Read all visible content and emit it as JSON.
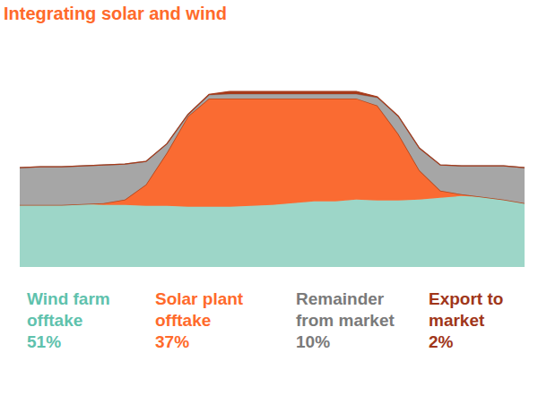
{
  "chart_data": {
    "type": "area",
    "title": "Integrating solar and wind",
    "stacked": true,
    "tick_labels": false,
    "x": [
      0,
      1,
      2,
      3,
      4,
      5,
      6,
      7,
      8,
      9,
      10,
      11,
      12,
      13,
      14,
      15,
      16,
      17,
      18,
      19,
      20,
      21,
      22,
      23,
      24
    ],
    "xlim": [
      0,
      24
    ],
    "ylim": [
      0,
      100
    ],
    "series": [
      {
        "name": "Wind farm offtake",
        "color": "#9dd6c8",
        "share": 51,
        "values": [
          35,
          35,
          35,
          35.5,
          35,
          35,
          34.5,
          34.5,
          34,
          34,
          34,
          34.5,
          35,
          36,
          37,
          37,
          38,
          37.5,
          37.5,
          38,
          39,
          40,
          39.5,
          38,
          36
        ]
      },
      {
        "name": "Solar plant offtake",
        "color": "#fa6b32",
        "share": 37,
        "values": [
          0,
          0,
          0,
          0,
          1,
          3,
          12,
          30,
          51,
          61,
          61,
          60.5,
          60,
          59,
          58,
          58,
          57,
          53.5,
          37.5,
          16.5,
          4,
          1,
          0,
          0,
          0
        ]
      },
      {
        "name": "Remainder from market",
        "color": "#a6a6a6",
        "share": 10,
        "values": [
          21,
          21.5,
          21.5,
          21.5,
          21.5,
          20,
          13,
          5,
          1,
          2,
          2.5,
          2.5,
          2.5,
          2.5,
          2.5,
          2.5,
          2.5,
          4.5,
          10,
          12.5,
          14.5,
          16,
          17.5,
          19,
          20
        ]
      },
      {
        "name": "Export to market",
        "color": "#a63a1a",
        "share": 2,
        "values": [
          0,
          0,
          0,
          0,
          0,
          0,
          0,
          0,
          0,
          0.3,
          1.5,
          1.5,
          1.5,
          1.5,
          1.5,
          1.5,
          1.5,
          0.5,
          0,
          0,
          0,
          0,
          0,
          0,
          0
        ]
      }
    ]
  }
}
